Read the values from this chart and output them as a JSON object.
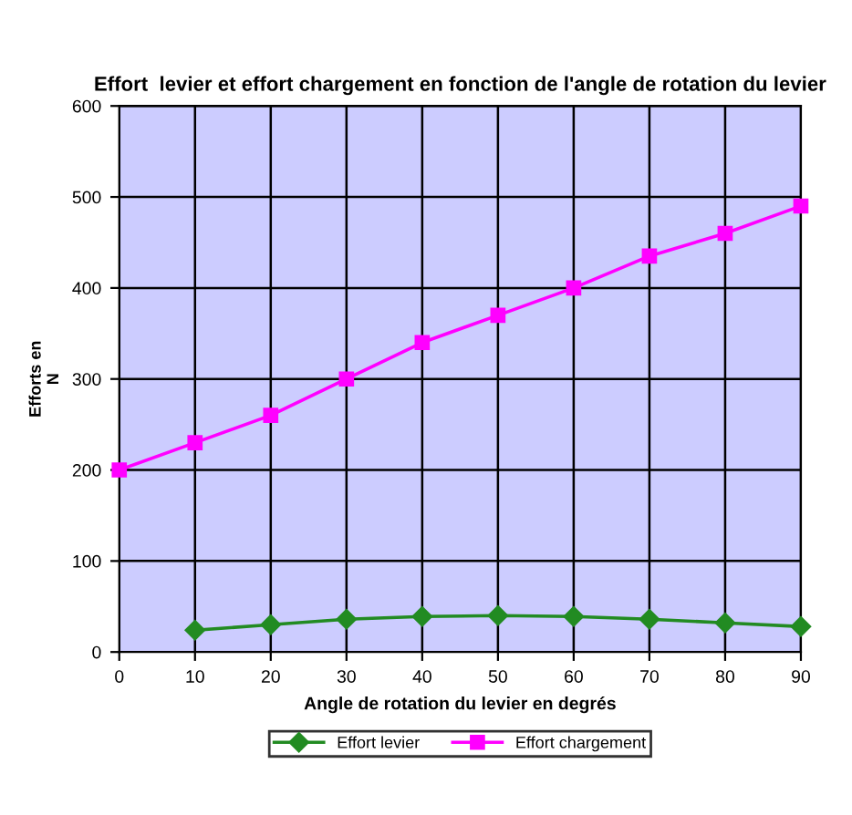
{
  "chart_data": {
    "type": "line",
    "title": "Effort  levier et effort chargement en fonction de l'angle de rotation du levier",
    "xlabel": "Angle de rotation du levier en degrés",
    "ylabel": "Efforts en\nN",
    "xlim": [
      0,
      90
    ],
    "xticks": [
      0,
      10,
      20,
      30,
      40,
      50,
      60,
      70,
      80,
      90
    ],
    "ylim": [
      0,
      600
    ],
    "yticks": [
      0,
      100,
      200,
      300,
      400,
      500,
      600
    ],
    "grid": true,
    "legend": "bottom",
    "line_style": "solid",
    "series": [
      {
        "name": "Effort levier",
        "color": "#228b22",
        "marker": "diamond",
        "x": [
          10,
          20,
          30,
          40,
          50,
          60,
          70,
          80,
          90
        ],
        "values": [
          24,
          30,
          36,
          39,
          40,
          39,
          36,
          32,
          28
        ]
      },
      {
        "name": "Effort chargement",
        "color": "#ff00ff",
        "marker": "square",
        "x": [
          0,
          10,
          20,
          30,
          40,
          50,
          60,
          70,
          80,
          90
        ],
        "values": [
          200,
          230,
          260,
          300,
          340,
          370,
          400,
          435,
          460,
          490
        ]
      }
    ]
  }
}
